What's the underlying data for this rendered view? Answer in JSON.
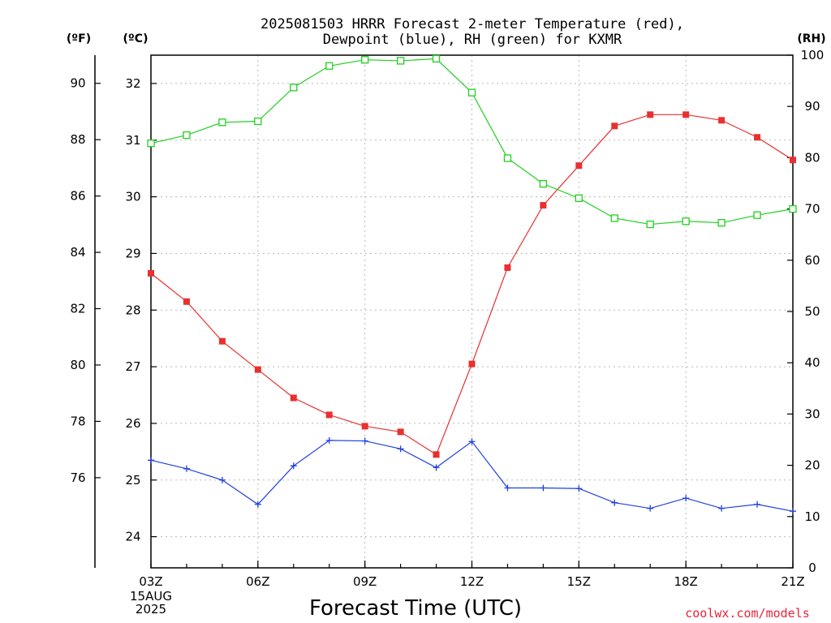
{
  "title_line1": "2025081503 HRRR Forecast 2-meter Temperature (red),",
  "title_line2": "Dewpoint (blue), RH (green) for KXMR",
  "unit_f": "(ºF)",
  "unit_c": "(ºC)",
  "unit_rh": "(RH)",
  "xlabel": "Forecast Time (UTC)",
  "date_day": "15AUG",
  "date_year": "2025",
  "source": "coolwx.com/models",
  "chart_data": {
    "type": "line",
    "x": [
      "03Z",
      "04Z",
      "05Z",
      "06Z",
      "07Z",
      "08Z",
      "09Z",
      "10Z",
      "11Z",
      "12Z",
      "13Z",
      "14Z",
      "15Z",
      "16Z",
      "17Z",
      "18Z",
      "19Z",
      "20Z",
      "21Z"
    ],
    "x_ticks": [
      "03Z",
      "06Z",
      "09Z",
      "12Z",
      "15Z",
      "18Z",
      "21Z"
    ],
    "axes": {
      "fahrenheit": {
        "range": [
          72.8,
          91
        ],
        "ticks": [
          76,
          78,
          80,
          82,
          84,
          86,
          88,
          90
        ]
      },
      "celsius": {
        "range": [
          23.45,
          32.5
        ],
        "ticks": [
          24,
          25,
          26,
          27,
          28,
          29,
          30,
          31,
          32
        ]
      },
      "rh": {
        "range": [
          0,
          100
        ],
        "ticks": [
          0,
          10,
          20,
          30,
          40,
          50,
          60,
          70,
          80,
          90,
          100
        ]
      }
    },
    "grid": true,
    "series": [
      {
        "axis": "celsius",
        "color": "#e83030",
        "marker": "square-filled",
        "values": [
          28.65,
          28.15,
          27.45,
          26.95,
          26.45,
          26.15,
          25.95,
          25.85,
          25.45,
          27.05,
          28.75,
          29.85,
          30.55,
          31.25,
          31.45,
          31.45,
          31.35,
          31.05,
          30.65
        ]
      },
      {
        "axis": "celsius",
        "color": "#2040e0",
        "marker": "plus",
        "values": [
          25.35,
          25.2,
          25.0,
          24.57,
          25.25,
          25.7,
          25.69,
          25.55,
          25.22,
          25.68,
          24.86,
          24.86,
          24.85,
          24.6,
          24.5,
          24.68,
          24.5,
          24.57,
          24.45
        ]
      },
      {
        "axis": "rh",
        "color": "#20d020",
        "marker": "square-open",
        "values": [
          82.8,
          84.4,
          86.9,
          87.1,
          93.7,
          97.9,
          99.1,
          98.9,
          99.3,
          92.7,
          79.9,
          74.9,
          72.1,
          68.2,
          67.0,
          67.6,
          67.3,
          68.8,
          70.0
        ]
      }
    ]
  }
}
